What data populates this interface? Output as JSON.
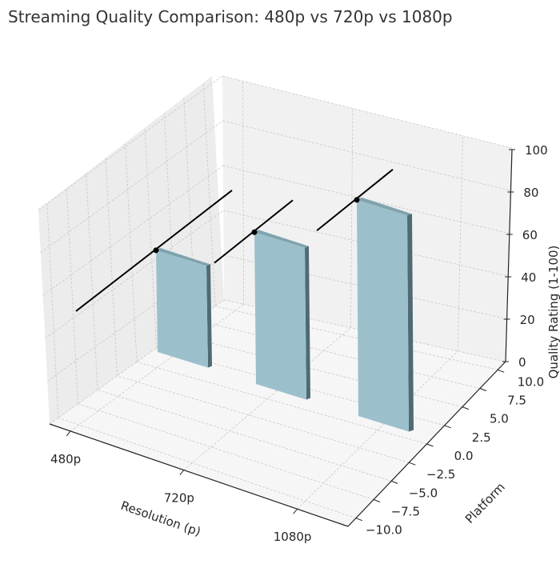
{
  "chart_data": {
    "type": "bar3d",
    "title": "Streaming Quality Comparison: 480p vs 720p vs 1080p",
    "xlabel": "Resolution (p)",
    "ylabel": "Platform",
    "zlabel": "Quality Rating (1-100)",
    "categories": [
      "480p",
      "720p",
      "1080p"
    ],
    "values": [
      62,
      75,
      88
    ],
    "zlim": [
      0,
      100
    ],
    "ylim": [
      -10,
      10
    ],
    "zticks": [
      "0",
      "20",
      "40",
      "60",
      "80",
      "100"
    ],
    "yticks": [
      "−10.0",
      "−7.5",
      "−5.0",
      "−2.5",
      "0.0",
      "2.5",
      "5.0",
      "7.5",
      "10.0"
    ],
    "bar_color": "#9bc0cc",
    "error_bar_color": "#000000",
    "grid": true
  }
}
